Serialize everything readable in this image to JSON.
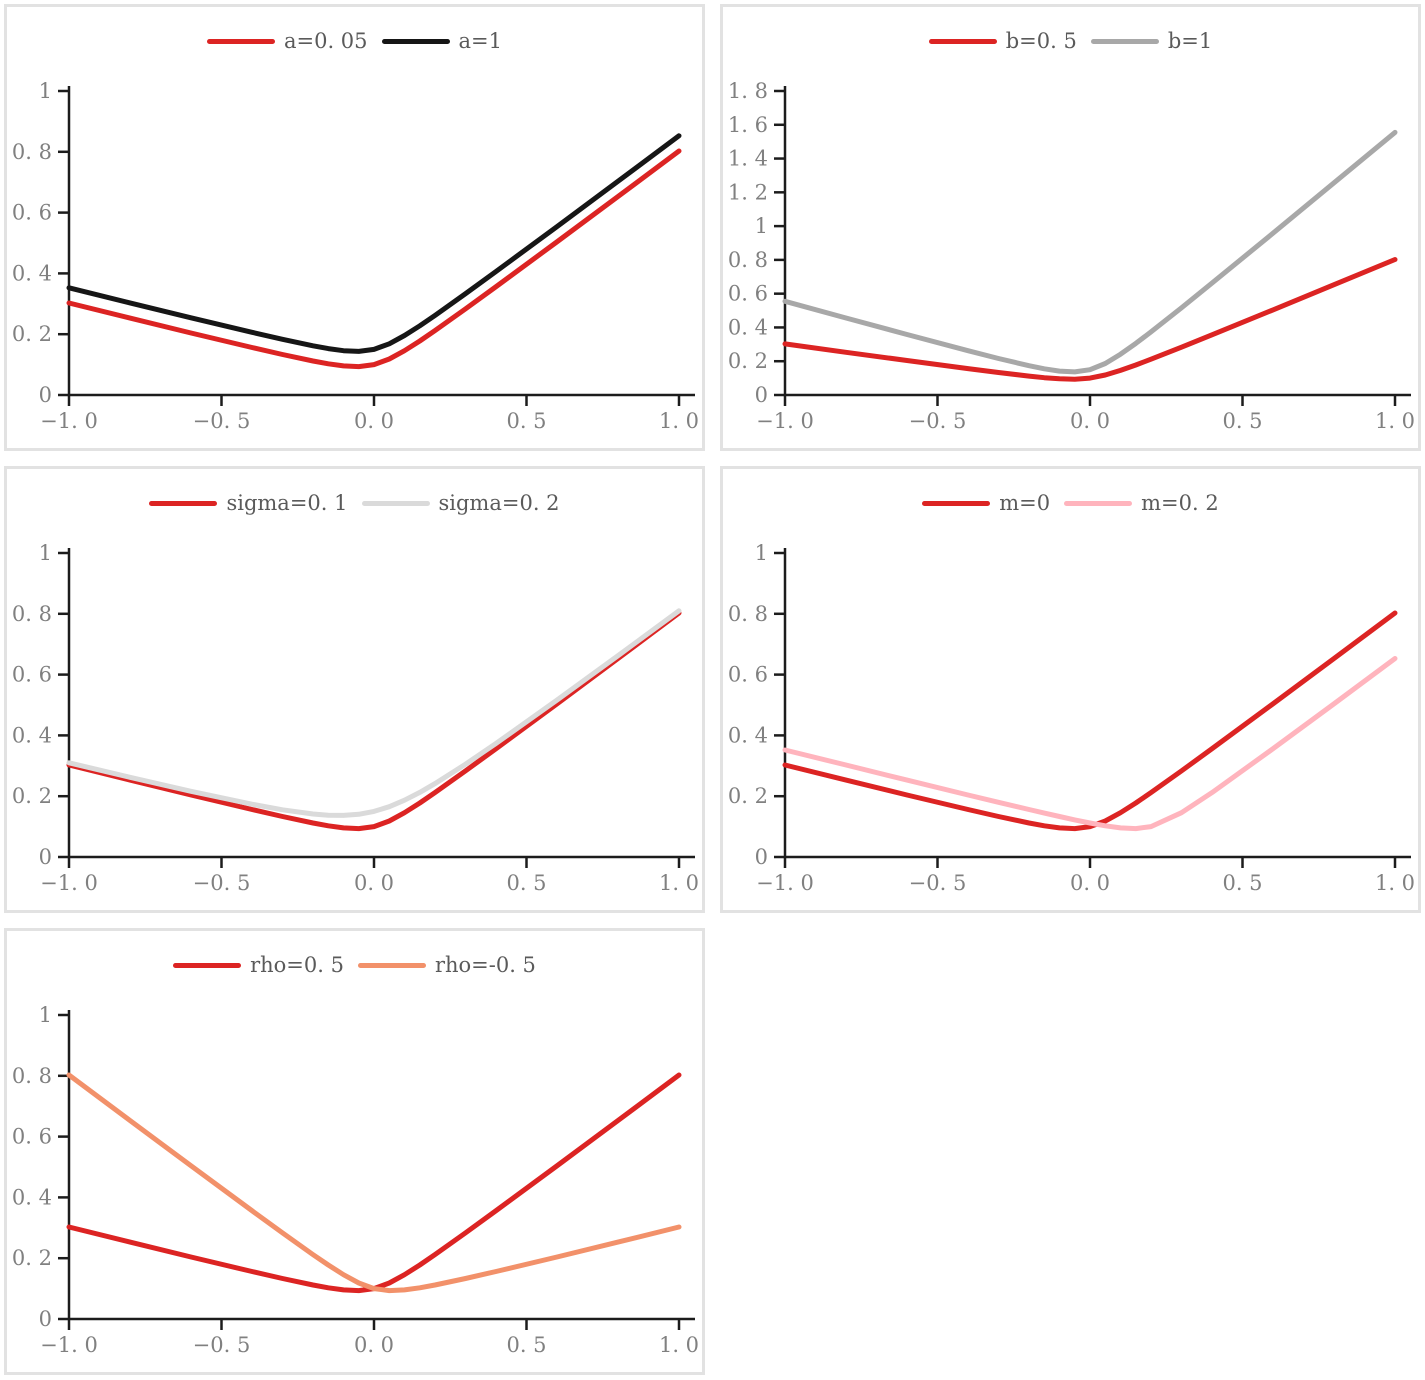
{
  "figure": {
    "background": "#ffffff",
    "panel_border_color": "#e2e2e2",
    "axis_color": "#1c1c1c",
    "tick_label_color": "#808080",
    "legend_label_color": "#5a5a5a"
  },
  "chart_data": [
    {
      "type": "line",
      "id": "a-sensitivity",
      "title": "",
      "xlabel": "",
      "ylabel": "",
      "legend_position": "top-center",
      "grid": false,
      "xlim": [
        -1,
        1
      ],
      "ylim": [
        0,
        1
      ],
      "x": [
        -1,
        -0.8,
        -0.6,
        -0.4,
        -0.3,
        -0.2,
        -0.15,
        -0.1,
        -0.05,
        0,
        0.05,
        0.1,
        0.15,
        0.2,
        0.3,
        0.4,
        0.6,
        0.8,
        1
      ],
      "series": [
        {
          "name": "a=0. 05",
          "color": "#dc2423",
          "values": [
            0.3025,
            0.2531,
            0.2041,
            0.1562,
            0.1331,
            0.1118,
            0.1026,
            0.0957,
            0.0934,
            0.1,
            0.1184,
            0.1457,
            0.1776,
            0.2118,
            0.2831,
            0.3562,
            0.5041,
            0.6531,
            0.8025
          ]
        },
        {
          "name": "a=1",
          "color": "#161616",
          "values": [
            0.3525,
            0.3031,
            0.2541,
            0.2062,
            0.1831,
            0.1618,
            0.1526,
            0.1457,
            0.1434,
            0.15,
            0.1684,
            0.1957,
            0.2276,
            0.2618,
            0.3331,
            0.4062,
            0.5541,
            0.7031,
            0.8525
          ]
        }
      ],
      "xticks": [
        {
          "v": -1,
          "label": "−1. 0"
        },
        {
          "v": -0.5,
          "label": "−0. 5"
        },
        {
          "v": 0,
          "label": "0. 0"
        },
        {
          "v": 0.5,
          "label": "0. 5"
        },
        {
          "v": 1,
          "label": "1. 0"
        }
      ],
      "yticks": [
        {
          "v": 0,
          "label": "0"
        },
        {
          "v": 0.2,
          "label": "0. 2"
        },
        {
          "v": 0.4,
          "label": "0. 4"
        },
        {
          "v": 0.6,
          "label": "0. 6"
        },
        {
          "v": 0.8,
          "label": "0. 8"
        },
        {
          "v": 1,
          "label": "1"
        }
      ]
    },
    {
      "type": "line",
      "id": "b-sensitivity",
      "title": "",
      "xlabel": "",
      "ylabel": "",
      "legend_position": "top-center",
      "grid": false,
      "xlim": [
        -1,
        1
      ],
      "ylim": [
        0,
        1.8
      ],
      "x": [
        -1,
        -0.8,
        -0.6,
        -0.4,
        -0.3,
        -0.2,
        -0.15,
        -0.1,
        -0.05,
        0,
        0.05,
        0.1,
        0.15,
        0.2,
        0.3,
        0.4,
        0.6,
        0.8,
        1
      ],
      "series": [
        {
          "name": "b=0. 5",
          "color": "#dc2423",
          "values": [
            0.3025,
            0.2531,
            0.2041,
            0.1562,
            0.1331,
            0.1118,
            0.1026,
            0.0957,
            0.0934,
            0.1,
            0.1184,
            0.1457,
            0.1776,
            0.2118,
            0.2831,
            0.3562,
            0.5041,
            0.6531,
            0.8025
          ]
        },
        {
          "name": "b=1",
          "color": "#a8a8a8",
          "values": [
            0.555,
            0.4562,
            0.3583,
            0.2623,
            0.2162,
            0.1736,
            0.1553,
            0.1414,
            0.1368,
            0.15,
            0.1868,
            0.2414,
            0.3053,
            0.3736,
            0.5162,
            0.6623,
            0.9583,
            1.2562,
            1.555
          ]
        }
      ],
      "xticks": [
        {
          "v": -1,
          "label": "−1. 0"
        },
        {
          "v": -0.5,
          "label": "−0. 5"
        },
        {
          "v": 0,
          "label": "0. 0"
        },
        {
          "v": 0.5,
          "label": "0. 5"
        },
        {
          "v": 1,
          "label": "1. 0"
        }
      ],
      "yticks": [
        {
          "v": 0,
          "label": "0"
        },
        {
          "v": 0.2,
          "label": "0. 2"
        },
        {
          "v": 0.4,
          "label": "0. 4"
        },
        {
          "v": 0.6,
          "label": "0. 6"
        },
        {
          "v": 0.8,
          "label": "0. 8"
        },
        {
          "v": 1,
          "label": "1"
        },
        {
          "v": 1.2,
          "label": "1. 2"
        },
        {
          "v": 1.4,
          "label": "1. 4"
        },
        {
          "v": 1.6,
          "label": "1. 6"
        },
        {
          "v": 1.8,
          "label": "1. 8"
        }
      ]
    },
    {
      "type": "line",
      "id": "sigma-sensitivity",
      "title": "",
      "xlabel": "",
      "ylabel": "",
      "legend_position": "top-center",
      "grid": false,
      "xlim": [
        -1,
        1
      ],
      "ylim": [
        0,
        1
      ],
      "x": [
        -1,
        -0.8,
        -0.6,
        -0.4,
        -0.3,
        -0.2,
        -0.15,
        -0.1,
        -0.05,
        0,
        0.05,
        0.1,
        0.15,
        0.2,
        0.3,
        0.4,
        0.6,
        0.8,
        1
      ],
      "series": [
        {
          "name": "sigma=0. 1",
          "color": "#dc2423",
          "values": [
            0.3025,
            0.2531,
            0.2041,
            0.1562,
            0.1331,
            0.1118,
            0.1026,
            0.0957,
            0.0934,
            0.1,
            0.1184,
            0.1457,
            0.1776,
            0.2118,
            0.2831,
            0.3562,
            0.5041,
            0.6531,
            0.8025
          ]
        },
        {
          "name": "sigma=0. 2",
          "color": "#dadada",
          "values": [
            0.3099,
            0.2623,
            0.2162,
            0.1736,
            0.1553,
            0.1414,
            0.1375,
            0.1368,
            0.1406,
            0.15,
            0.1656,
            0.1868,
            0.2125,
            0.2414,
            0.3053,
            0.3736,
            0.5162,
            0.6623,
            0.8099
          ]
        }
      ],
      "xticks": [
        {
          "v": -1,
          "label": "−1. 0"
        },
        {
          "v": -0.5,
          "label": "−0. 5"
        },
        {
          "v": 0,
          "label": "0. 0"
        },
        {
          "v": 0.5,
          "label": "0. 5"
        },
        {
          "v": 1,
          "label": "1. 0"
        }
      ],
      "yticks": [
        {
          "v": 0,
          "label": "0"
        },
        {
          "v": 0.2,
          "label": "0. 2"
        },
        {
          "v": 0.4,
          "label": "0. 4"
        },
        {
          "v": 0.6,
          "label": "0. 6"
        },
        {
          "v": 0.8,
          "label": "0. 8"
        },
        {
          "v": 1,
          "label": "1"
        }
      ]
    },
    {
      "type": "line",
      "id": "m-sensitivity",
      "title": "",
      "xlabel": "",
      "ylabel": "",
      "legend_position": "top-center",
      "grid": false,
      "xlim": [
        -1,
        1
      ],
      "ylim": [
        0,
        1
      ],
      "x": [
        -1,
        -0.8,
        -0.6,
        -0.4,
        -0.3,
        -0.2,
        -0.15,
        -0.1,
        -0.05,
        0,
        0.05,
        0.1,
        0.15,
        0.2,
        0.3,
        0.4,
        0.6,
        0.8,
        1
      ],
      "series": [
        {
          "name": "m=0",
          "color": "#dc2423",
          "values": [
            0.3025,
            0.2531,
            0.2041,
            0.1562,
            0.1331,
            0.1118,
            0.1026,
            0.0957,
            0.0934,
            0.1,
            0.1184,
            0.1457,
            0.1776,
            0.2118,
            0.2831,
            0.3562,
            0.5041,
            0.6531,
            0.8025
          ]
        },
        {
          "name": "m=0. 2",
          "color": "#ffb4bd",
          "values": [
            0.3521,
            0.3025,
            0.2531,
            0.2041,
            0.18,
            0.1562,
            0.1445,
            0.1331,
            0.1221,
            0.1118,
            0.1026,
            0.0957,
            0.0934,
            0.1,
            0.1457,
            0.2118,
            0.3562,
            0.5041,
            0.6531
          ]
        }
      ],
      "xticks": [
        {
          "v": -1,
          "label": "−1. 0"
        },
        {
          "v": -0.5,
          "label": "−0. 5"
        },
        {
          "v": 0,
          "label": "0. 0"
        },
        {
          "v": 0.5,
          "label": "0. 5"
        },
        {
          "v": 1,
          "label": "1. 0"
        }
      ],
      "yticks": [
        {
          "v": 0,
          "label": "0"
        },
        {
          "v": 0.2,
          "label": "0. 2"
        },
        {
          "v": 0.4,
          "label": "0. 4"
        },
        {
          "v": 0.6,
          "label": "0. 6"
        },
        {
          "v": 0.8,
          "label": "0. 8"
        },
        {
          "v": 1,
          "label": "1"
        }
      ]
    },
    {
      "type": "line",
      "id": "rho-sensitivity",
      "title": "",
      "xlabel": "",
      "ylabel": "",
      "legend_position": "top-center",
      "grid": false,
      "xlim": [
        -1,
        1
      ],
      "ylim": [
        0,
        1
      ],
      "x": [
        -1,
        -0.8,
        -0.6,
        -0.4,
        -0.3,
        -0.2,
        -0.15,
        -0.1,
        -0.05,
        0,
        0.05,
        0.1,
        0.15,
        0.2,
        0.3,
        0.4,
        0.6,
        0.8,
        1
      ],
      "series": [
        {
          "name": "rho=0. 5",
          "color": "#dc2423",
          "values": [
            0.3025,
            0.2531,
            0.2041,
            0.1562,
            0.1331,
            0.1118,
            0.1026,
            0.0957,
            0.0934,
            0.1,
            0.1184,
            0.1457,
            0.1776,
            0.2118,
            0.2831,
            0.3562,
            0.5041,
            0.6531,
            0.8025
          ]
        },
        {
          "name": "rho=-0. 5",
          "color": "#f2916a",
          "values": [
            0.8025,
            0.6531,
            0.5041,
            0.3562,
            0.2831,
            0.2118,
            0.1776,
            0.1457,
            0.1184,
            0.1,
            0.0934,
            0.0957,
            0.1026,
            0.1118,
            0.1331,
            0.1562,
            0.2041,
            0.2531,
            0.3025
          ]
        }
      ],
      "xticks": [
        {
          "v": -1,
          "label": "−1. 0"
        },
        {
          "v": -0.5,
          "label": "−0. 5"
        },
        {
          "v": 0,
          "label": "0. 0"
        },
        {
          "v": 0.5,
          "label": "0. 5"
        },
        {
          "v": 1,
          "label": "1. 0"
        }
      ],
      "yticks": [
        {
          "v": 0,
          "label": "0"
        },
        {
          "v": 0.2,
          "label": "0. 2"
        },
        {
          "v": 0.4,
          "label": "0. 4"
        },
        {
          "v": 0.6,
          "label": "0. 6"
        },
        {
          "v": 0.8,
          "label": "0. 8"
        },
        {
          "v": 1,
          "label": "1"
        }
      ]
    }
  ]
}
